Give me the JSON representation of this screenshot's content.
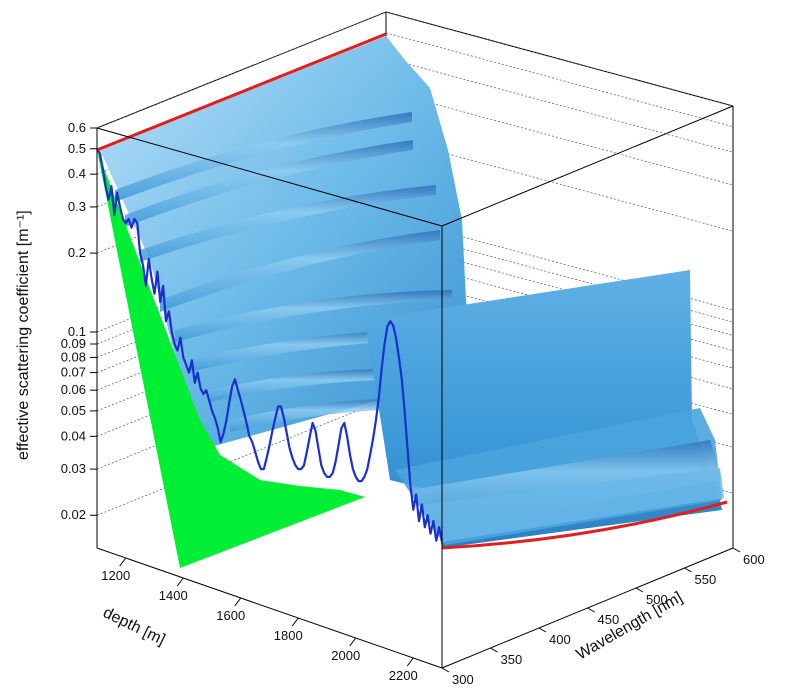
{
  "chart_data": {
    "type": "surface-3d",
    "title": "",
    "axes": {
      "z": {
        "label": "effective scattering coefficient [m⁻¹]",
        "scale": "log",
        "ticks": [
          0.02,
          0.03,
          0.04,
          0.05,
          0.06,
          0.07,
          0.08,
          0.09,
          0.1,
          0.2,
          0.3,
          0.4,
          0.5,
          0.6
        ],
        "tick_labels": [
          "0.02",
          "0.03",
          "0.04",
          "0.05",
          "0.06",
          "0.07",
          "0.08",
          "0.09",
          "0.1",
          "0.2",
          "0.3",
          "0.4",
          "0.5",
          "0.6"
        ],
        "range": [
          0.015,
          0.6
        ]
      },
      "depth": {
        "label": "depth [m]",
        "ticks": [
          1200,
          1400,
          1600,
          1800,
          2000,
          2200
        ],
        "tick_labels": [
          "1200",
          "1400",
          "1600",
          "1800",
          "2000",
          "2200"
        ],
        "range": [
          1100,
          2300
        ]
      },
      "wavelength": {
        "label": "Wavelength [nm]",
        "ticks": [
          300,
          350,
          400,
          450,
          500,
          550,
          600
        ],
        "tick_labels": [
          "300",
          "350",
          "400",
          "450",
          "500",
          "550",
          "600"
        ],
        "range": [
          300,
          600
        ]
      }
    },
    "depth_profile_at_300nm": {
      "name": "",
      "depth": [
        1100,
        1110,
        1120,
        1130,
        1140,
        1150,
        1160,
        1170,
        1180,
        1190,
        1200,
        1210,
        1220,
        1230,
        1240,
        1250,
        1260,
        1270,
        1280,
        1290,
        1300,
        1310,
        1320,
        1330,
        1340,
        1350,
        1360,
        1370,
        1380,
        1390,
        1400,
        1410,
        1420,
        1430,
        1440,
        1450,
        1460,
        1470,
        1480,
        1490,
        1500,
        1510,
        1520,
        1530,
        1540,
        1550,
        1560,
        1570,
        1580,
        1590,
        1600,
        1610,
        1620,
        1630,
        1640,
        1650,
        1660,
        1670,
        1680,
        1690,
        1700,
        1710,
        1720,
        1730,
        1740,
        1750,
        1760,
        1770,
        1780,
        1790,
        1800,
        1810,
        1820,
        1830,
        1840,
        1850,
        1860,
        1870,
        1880,
        1890,
        1900,
        1910,
        1920,
        1930,
        1940,
        1950,
        1960,
        1970,
        1980,
        1990,
        2000,
        2010,
        2020,
        2030,
        2040,
        2050,
        2060,
        2070,
        2080,
        2090,
        2100,
        2110,
        2120,
        2130,
        2140,
        2150,
        2160,
        2170,
        2180,
        2190,
        2200,
        2210,
        2220,
        2230,
        2240,
        2250,
        2260,
        2270,
        2280,
        2290,
        2300
      ],
      "values": [
        0.5,
        0.48,
        0.42,
        0.36,
        0.32,
        0.36,
        0.28,
        0.34,
        0.3,
        0.27,
        0.26,
        0.27,
        0.25,
        0.27,
        0.26,
        0.2,
        0.18,
        0.15,
        0.19,
        0.16,
        0.14,
        0.17,
        0.13,
        0.15,
        0.11,
        0.12,
        0.1,
        0.09,
        0.085,
        0.095,
        0.08,
        0.075,
        0.07,
        0.078,
        0.064,
        0.07,
        0.061,
        0.058,
        0.06,
        0.055,
        0.05,
        0.047,
        0.043,
        0.038,
        0.041,
        0.046,
        0.054,
        0.062,
        0.066,
        0.06,
        0.055,
        0.05,
        0.045,
        0.04,
        0.038,
        0.035,
        0.032,
        0.03,
        0.03,
        0.033,
        0.037,
        0.042,
        0.047,
        0.052,
        0.052,
        0.047,
        0.041,
        0.036,
        0.033,
        0.031,
        0.03,
        0.03,
        0.031,
        0.035,
        0.04,
        0.045,
        0.042,
        0.036,
        0.031,
        0.029,
        0.028,
        0.028,
        0.029,
        0.032,
        0.037,
        0.043,
        0.045,
        0.04,
        0.034,
        0.03,
        0.028,
        0.027,
        0.027,
        0.028,
        0.03,
        0.034,
        0.039,
        0.046,
        0.056,
        0.072,
        0.09,
        0.105,
        0.11,
        0.106,
        0.095,
        0.08,
        0.066,
        0.05,
        0.036,
        0.026,
        0.021,
        0.024,
        0.019,
        0.022,
        0.018,
        0.02,
        0.017,
        0.019,
        0.016,
        0.018,
        0.016
      ]
    },
    "wavelength_profile_at_1100m": {
      "wavelength": [
        300,
        600
      ],
      "values": [
        0.5,
        0.5
      ]
    },
    "wavelength_profile_at_2300m": {
      "wavelength": [
        300,
        350,
        400,
        450,
        500,
        550,
        600
      ],
      "values": [
        0.016,
        0.0155,
        0.015,
        0.0146,
        0.0142,
        0.0139,
        0.0136
      ]
    },
    "grid": true,
    "legend": "none",
    "colors": {
      "surface_light": "#a8d6f2",
      "surface_mid": "#5fb3e6",
      "surface_dark": "#2f86c9",
      "depth_profile_line": "#1a2fd0",
      "wavelength_profile_line": "#e02020",
      "floor_fill": "#00ee33",
      "box_edges": "#000000",
      "grid": "#555555"
    }
  }
}
